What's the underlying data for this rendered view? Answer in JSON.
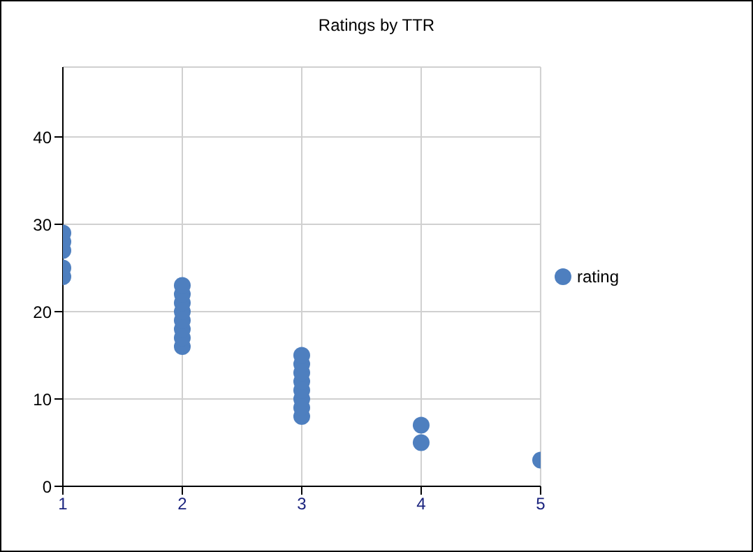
{
  "chart_data": {
    "type": "scatter",
    "title": "Ratings by TTR",
    "x": [
      1,
      1,
      1,
      1,
      1,
      2,
      2,
      2,
      2,
      2,
      2,
      2,
      2,
      3,
      3,
      3,
      3,
      3,
      3,
      3,
      3,
      4,
      4,
      5
    ],
    "series": [
      {
        "name": "rating",
        "color": "#4e7fbf",
        "values": [
          24,
          25,
          27,
          28,
          29,
          16,
          17,
          18,
          19,
          20,
          21,
          22,
          23,
          8,
          9,
          10,
          11,
          12,
          13,
          14,
          15,
          5,
          7,
          3
        ]
      }
    ],
    "xlim": [
      1,
      5
    ],
    "xticks": [
      1,
      2,
      3,
      4,
      5
    ],
    "ylim": [
      0,
      48
    ],
    "yticks": [
      0,
      10,
      20,
      30,
      40
    ],
    "grid": true,
    "legend": "right",
    "marker": "circle"
  }
}
